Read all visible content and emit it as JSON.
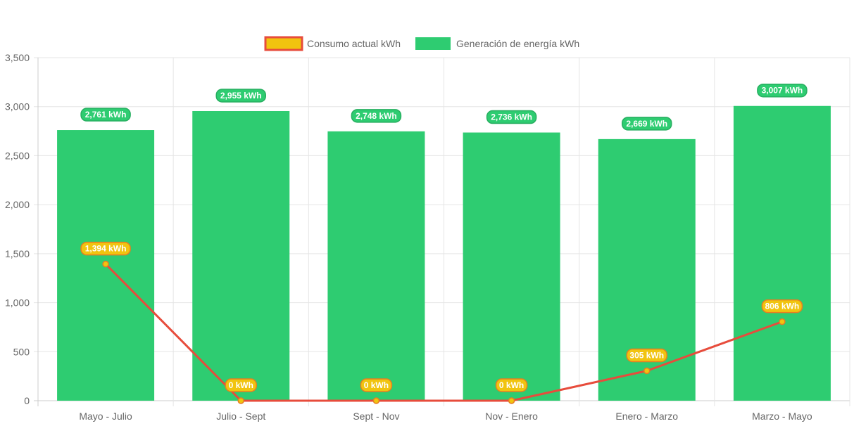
{
  "chart_data": {
    "type": "bar",
    "categories": [
      "Mayo - Julio",
      "Julio - Sept",
      "Sept - Nov",
      "Nov - Enero",
      "Enero - Marzo",
      "Marzo - Mayo"
    ],
    "series": [
      {
        "name": "Consumo actual kWh",
        "type": "line",
        "values": [
          1394,
          0,
          0,
          0,
          305,
          806
        ],
        "labels": [
          "1,394 kWh",
          "0 kWh",
          "0 kWh",
          "0 kWh",
          "305 kWh",
          "806 kWh"
        ],
        "line_color": "#e74c3c",
        "fill_color": "#f1c40f",
        "label_border_color": "#e67e22"
      },
      {
        "name": "Generación de energía kWh",
        "type": "bar",
        "values": [
          2761,
          2955,
          2748,
          2736,
          2669,
          3007
        ],
        "labels": [
          "2,761 kWh",
          "2,955 kWh",
          "2,748 kWh",
          "2,736 kWh",
          "2,669 kWh",
          "3,007 kWh"
        ],
        "color": "#2ecc71",
        "label_border_color": "#27ae60"
      }
    ],
    "y_ticks": [
      "0",
      "500",
      "1,000",
      "1,500",
      "2,000",
      "2,500",
      "3,000",
      "3,500"
    ],
    "ylim": [
      0,
      3500
    ],
    "title": "",
    "xlabel": "",
    "ylabel": "",
    "grid": true,
    "legend_position": "top-center"
  }
}
